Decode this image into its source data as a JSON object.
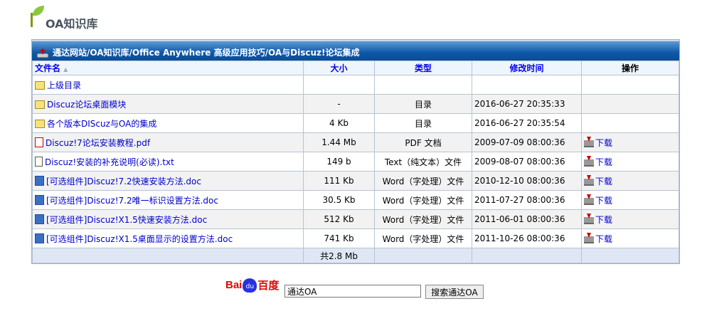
{
  "page": {
    "title": "OA知识库"
  },
  "breadcrumb": "通达网站/OA知识库/Office Anywhere 高级应用技巧/OA与Discuz!论坛集成",
  "table": {
    "headers": [
      "文件名",
      "大小",
      "类型",
      "修改时间",
      "操作"
    ],
    "sort_indicator": "▲",
    "parent": {
      "name": "上级目录",
      "icon": "folder-up-icon"
    },
    "rows": [
      {
        "name": "Discuz论坛桌面模块",
        "size": "-",
        "type": "目录",
        "time": "2016-06-27 20:35:33",
        "icon": "folder",
        "action": ""
      },
      {
        "name": "各个版本DIScuz与OA的集成",
        "size": "4 Kb",
        "type": "目录",
        "time": "2016-06-27 20:35:54",
        "icon": "folder",
        "action": ""
      },
      {
        "name": "Discuz!7论坛安装教程.pdf",
        "size": "1.44 Mb",
        "type": "PDF 文档",
        "time": "2009-07-09 08:00:36",
        "icon": "pdf",
        "action": "下载"
      },
      {
        "name": "Discuz!安装的补充说明(必读).txt",
        "size": "149 b",
        "type": "Text（纯文本）文件",
        "time": "2009-08-07 08:00:36",
        "icon": "txt",
        "action": "下载"
      },
      {
        "name": "[可选组件]Discuz!7.2快速安装方法.doc",
        "size": "111 Kb",
        "type": "Word（字处理）文件",
        "time": "2010-12-10 08:00:36",
        "icon": "doc",
        "action": "下载"
      },
      {
        "name": "[可选组件]Discuz!7.2唯一标识设置方法.doc",
        "size": "30.5 Kb",
        "type": "Word（字处理）文件",
        "time": "2011-07-27 08:00:36",
        "icon": "doc",
        "action": "下载"
      },
      {
        "name": "[可选组件]Discuz!X1.5快速安装方法.doc",
        "size": "512 Kb",
        "type": "Word（字处理）文件",
        "time": "2011-06-01 08:00:36",
        "icon": "doc",
        "action": "下载"
      },
      {
        "name": "[可选组件]Discuz!X1.5桌面显示的设置方法.doc",
        "size": "741 Kb",
        "type": "Word（字处理）文件",
        "time": "2011-10-26 08:00:36",
        "icon": "doc",
        "action": "下载"
      }
    ],
    "total": "共2.8 Mb"
  },
  "search": {
    "logo": "Baidu百度",
    "value": "通达OA",
    "button": "搜索通达OA"
  }
}
